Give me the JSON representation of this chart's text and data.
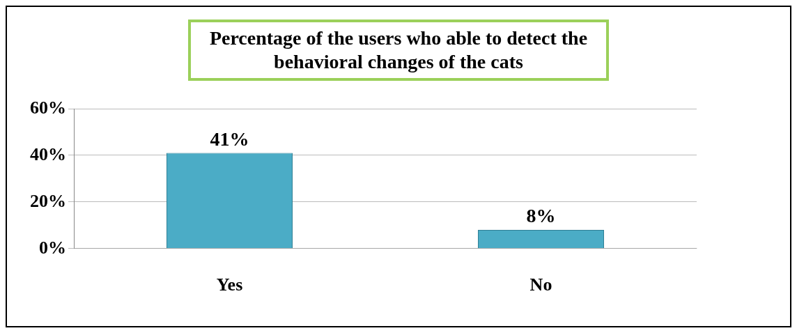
{
  "chart_data": {
    "type": "bar",
    "title": "Percentage of the users who able to detect the behavioral changes of the cats",
    "categories": [
      "Yes",
      "No"
    ],
    "values": [
      41,
      8
    ],
    "color": "#4bacc6",
    "ylim": [
      0,
      60
    ],
    "yticks": [
      {
        "value": 0,
        "label": "0%"
      },
      {
        "value": 20,
        "label": "20%"
      },
      {
        "value": 40,
        "label": "40%"
      },
      {
        "value": 60,
        "label": "60%"
      }
    ],
    "value_labels": [
      "41%",
      "8%"
    ],
    "grid": "y",
    "legend": false
  }
}
